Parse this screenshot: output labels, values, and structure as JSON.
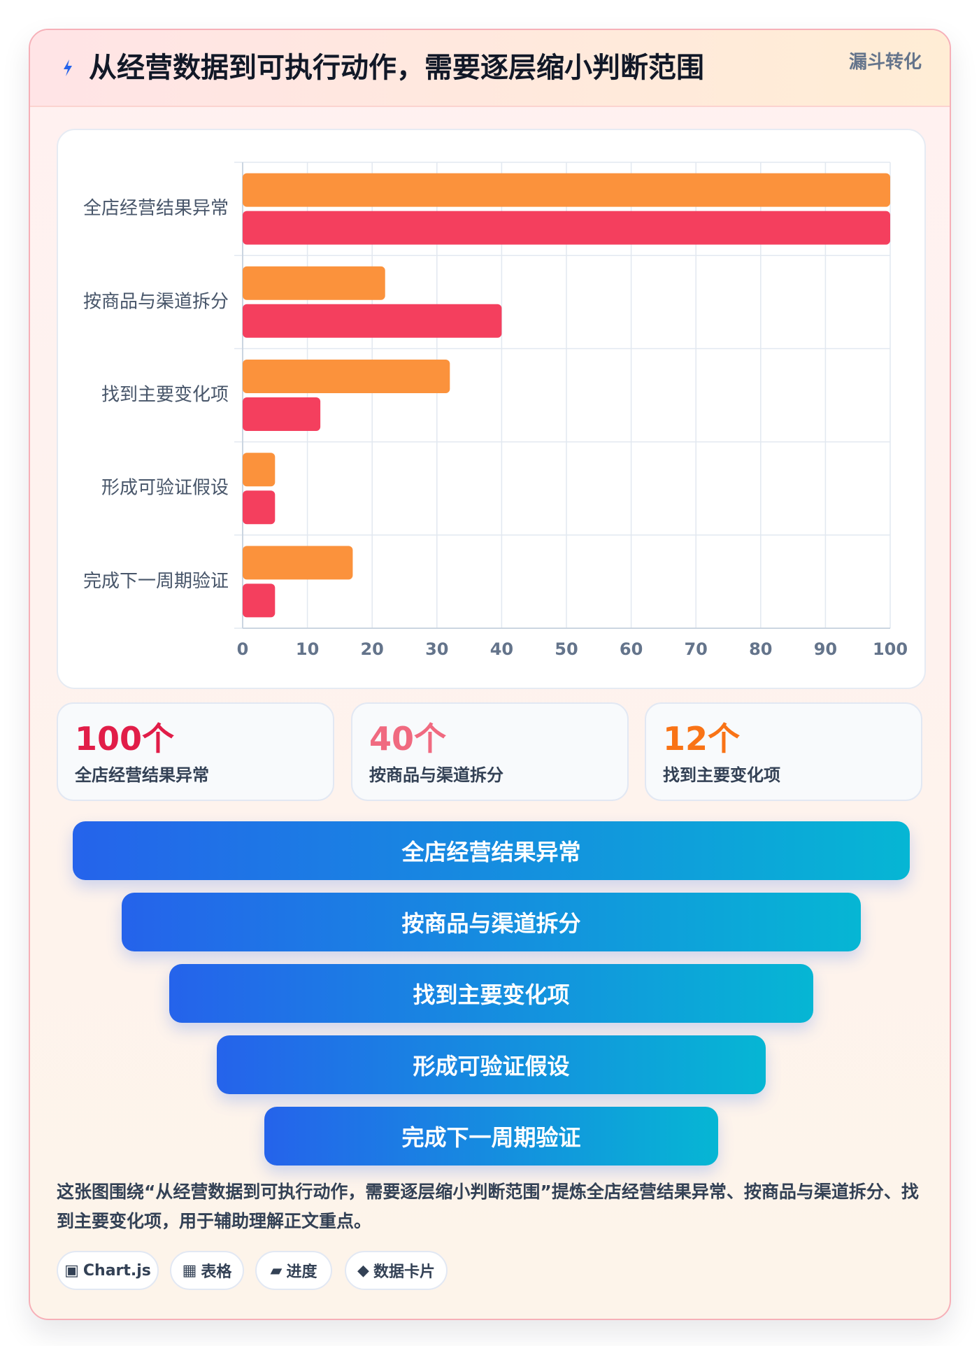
{
  "header": {
    "icon": "lightning-icon",
    "title": "从经营数据到可执行动作，需要逐层缩小判断范围",
    "badge": "漏斗转化"
  },
  "chart_data": {
    "type": "bar",
    "orientation": "horizontal",
    "categories": [
      "全店经营结果异常",
      "按商品与渠道拆分",
      "找到主要变化项",
      "形成可验证假设",
      "完成下一周期验证"
    ],
    "series": [
      {
        "values": [
          100,
          22,
          32,
          5,
          17
        ],
        "color": "#fb923c"
      },
      {
        "values": [
          100,
          40,
          12,
          5,
          5
        ],
        "color": "#f43f5e"
      }
    ],
    "xlim": [
      0,
      100
    ],
    "xticks": [
      0,
      10,
      20,
      30,
      40,
      50,
      60,
      70,
      80,
      90,
      100
    ],
    "grid": true,
    "title": "",
    "xlabel": "",
    "ylabel": ""
  },
  "stats": [
    {
      "value": "100个",
      "label": "全店经营结果异常",
      "color": "#e11d48"
    },
    {
      "value": "40个",
      "label": "按商品与渠道拆分",
      "color": "#f06a80"
    },
    {
      "value": "12个",
      "label": "找到主要变化项",
      "color": "#f97316"
    }
  ],
  "funnel": [
    {
      "label": "全店经营结果异常"
    },
    {
      "label": "按商品与渠道拆分"
    },
    {
      "label": "找到主要变化项"
    },
    {
      "label": "形成可验证假设"
    },
    {
      "label": "完成下一周期验证"
    }
  ],
  "summary": "这张图围绕“从经营数据到可执行动作，需要逐层缩小判断范围”提炼全店经营结果异常、按商品与渠道拆分、找到主要变化项，用于辅助理解正文重点。",
  "tags": [
    {
      "icon": "▣",
      "label": "Chart.js"
    },
    {
      "icon": "▦",
      "label": "表格"
    },
    {
      "icon": "▰",
      "label": "进度"
    },
    {
      "icon": "◆",
      "label": "数据卡片"
    }
  ],
  "colors": {
    "funnel_start": "#2563eb",
    "funnel_end": "#06b6d4"
  }
}
